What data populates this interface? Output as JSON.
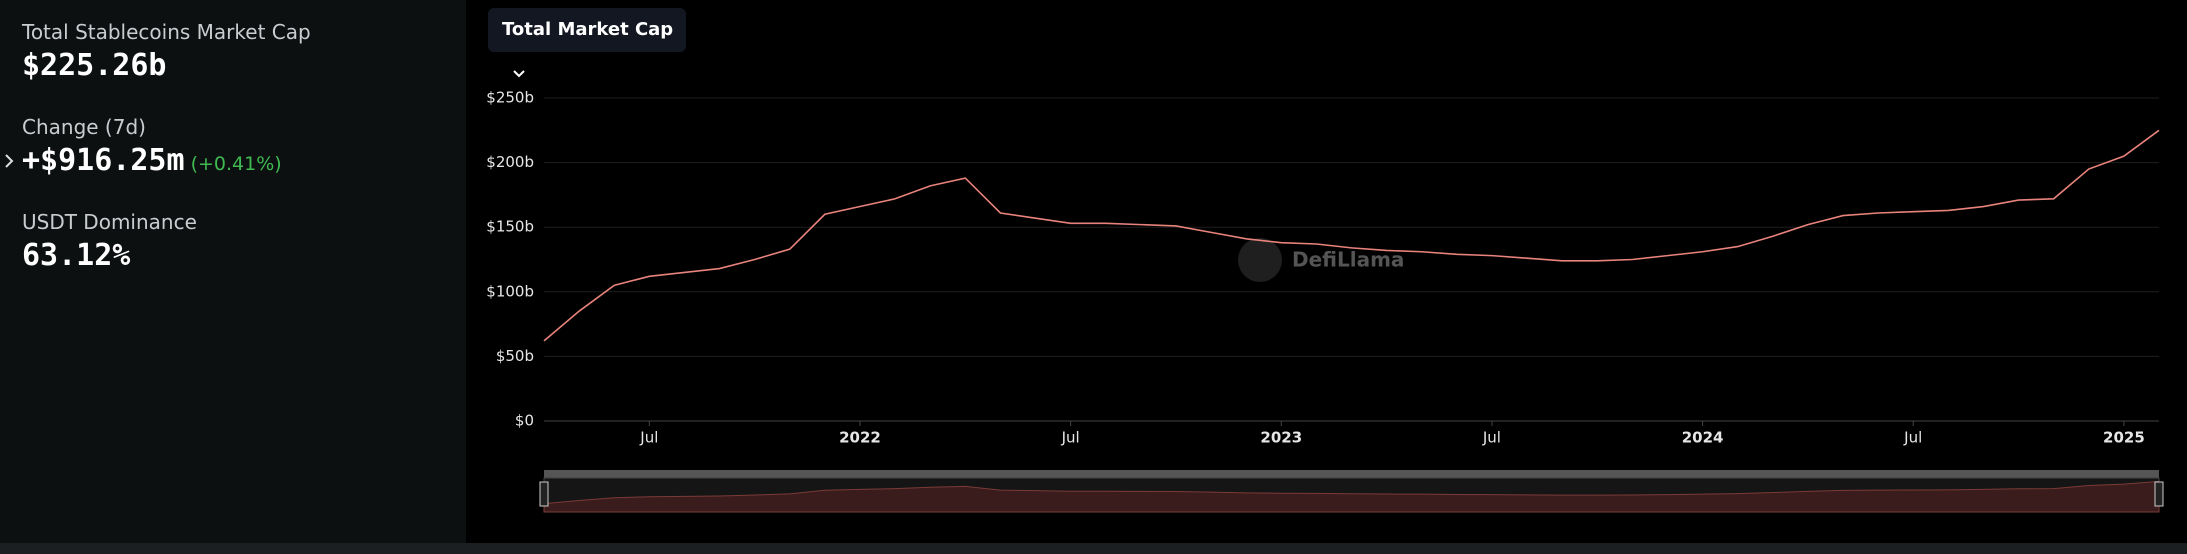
{
  "stats": [
    {
      "label": "Total Stablecoins Market Cap",
      "value": "$225.26b"
    },
    {
      "label": "Change (7d)",
      "value": "+$916.25m",
      "change": "(+0.41%)"
    },
    {
      "label": "USDT Dominance",
      "value": "63.12%"
    }
  ],
  "selector": "Total Market Cap",
  "watermark": "DefiLlama",
  "chart_data": {
    "type": "line",
    "color": "#e8837c",
    "x": [
      "2021-04",
      "2021-05",
      "2021-06",
      "2021-07",
      "2021-08",
      "2021-09",
      "2021-10",
      "2021-11",
      "2021-12",
      "2022-01",
      "2022-02",
      "2022-03",
      "2022-04",
      "2022-05",
      "2022-06",
      "2022-07",
      "2022-08",
      "2022-09",
      "2022-10",
      "2022-11",
      "2022-12",
      "2023-01",
      "2023-02",
      "2023-03",
      "2023-04",
      "2023-05",
      "2023-06",
      "2023-07",
      "2023-08",
      "2023-09",
      "2023-10",
      "2023-11",
      "2023-12",
      "2024-01",
      "2024-02",
      "2024-03",
      "2024-04",
      "2024-05",
      "2024-06",
      "2024-07",
      "2024-08",
      "2024-09",
      "2024-10",
      "2024-11",
      "2024-12",
      "2025-01",
      "2025-02"
    ],
    "values": [
      62,
      85,
      105,
      112,
      115,
      118,
      125,
      133,
      160,
      166,
      172,
      182,
      188,
      161,
      157,
      153,
      153,
      152,
      151,
      146,
      141,
      138,
      137,
      134,
      132,
      131,
      129,
      128,
      126,
      124,
      124,
      125,
      128,
      131,
      135,
      143,
      152,
      159,
      161,
      162,
      163,
      166,
      171,
      172,
      195,
      205,
      225
    ],
    "xlim": [
      "2021-04",
      "2025-02"
    ],
    "xticks": [
      {
        "value": "2021-07",
        "label": "Jul"
      },
      {
        "value": "2022-01",
        "label": "2022"
      },
      {
        "value": "2022-07",
        "label": "Jul"
      },
      {
        "value": "2023-01",
        "label": "2023"
      },
      {
        "value": "2023-07",
        "label": "Jul"
      },
      {
        "value": "2024-01",
        "label": "2024"
      },
      {
        "value": "2024-07",
        "label": "Jul"
      },
      {
        "value": "2025-01",
        "label": "2025"
      }
    ],
    "ylim": [
      0,
      250
    ],
    "yticks": [
      {
        "value": 0,
        "label": "$0"
      },
      {
        "value": 50,
        "label": "$50b"
      },
      {
        "value": 100,
        "label": "$100b"
      },
      {
        "value": 150,
        "label": "$150b"
      },
      {
        "value": 200,
        "label": "$200b"
      },
      {
        "value": 250,
        "label": "$250b"
      }
    ],
    "grid": true
  }
}
